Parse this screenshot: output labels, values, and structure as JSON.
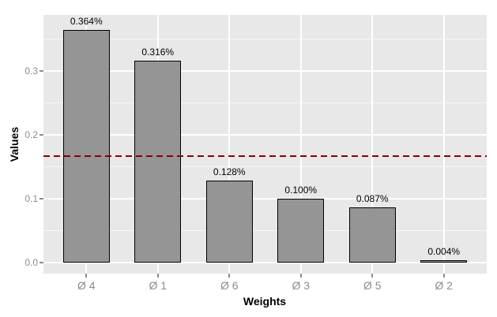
{
  "chart_data": {
    "type": "bar",
    "title": "",
    "xlabel": "Weights",
    "ylabel": "Values",
    "categories": [
      "Ø 4",
      "Ø 1",
      "Ø 6",
      "Ø 3",
      "Ø 5",
      "Ø 2"
    ],
    "values": [
      0.364,
      0.316,
      0.128,
      0.1,
      0.087,
      0.004
    ],
    "bar_labels": [
      "0.364%",
      "0.316%",
      "0.128%",
      "0.100%",
      "0.087%",
      "0.004%"
    ],
    "ylim": [
      -0.018,
      0.388
    ],
    "yticks": [
      0.0,
      0.1,
      0.2,
      0.3
    ],
    "ytick_labels": [
      "0.0",
      "0.1",
      "0.2",
      "0.3"
    ],
    "yminor_ticks": [
      0.05,
      0.15,
      0.25,
      0.35
    ],
    "reference_line": {
      "value": 0.1665,
      "style": "dashed",
      "color": "#8B0000"
    },
    "grid": true,
    "legend": "none",
    "colors": {
      "panel_background": "#E8E8E8",
      "grid_major": "#FFFFFF",
      "grid_minor": "#FFFFFF",
      "bar_fill": "#959595",
      "bar_border": "#000000",
      "axis_text": "#8C8C8C",
      "tick_mark": "#8C8C8C",
      "axis_title": "#000000",
      "bar_label_text": "#000000"
    }
  }
}
